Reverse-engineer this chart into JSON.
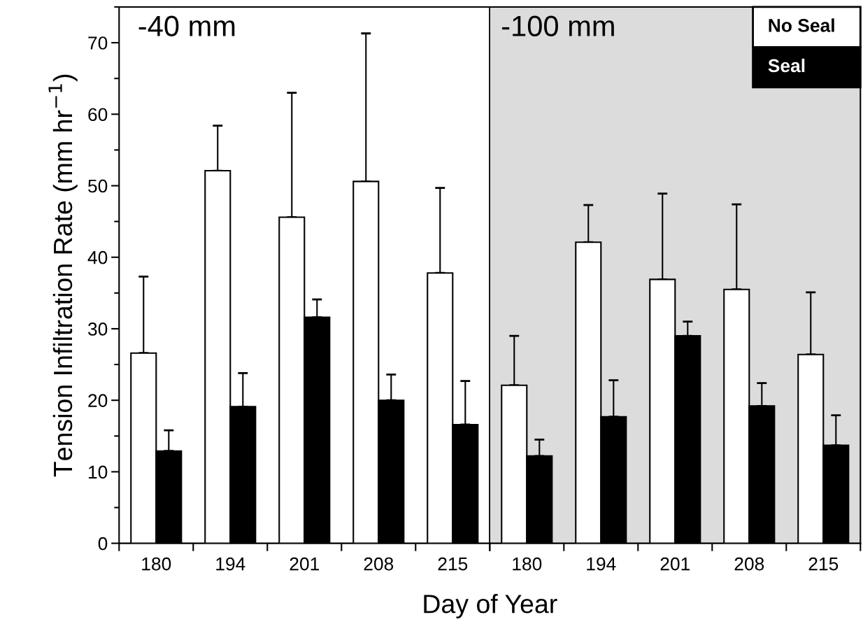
{
  "chart_data": [
    {
      "type": "bar",
      "title": "-40 mm",
      "xlabel": "Day of Year",
      "ylabel": "Tension Infiltration Rate (mm hr$^{−1}$)",
      "categories": [
        "180",
        "194",
        "201",
        "208",
        "215"
      ],
      "series": [
        {
          "color": "#ffffff",
          "values": [
            26.6,
            52.1,
            45.6,
            50.6,
            37.8
          ],
          "errors": [
            [
              26.6,
              37.3
            ],
            [
              52.1,
              58.4
            ],
            [
              45.6,
              63.0
            ],
            [
              50.6,
              71.3
            ],
            [
              37.8,
              49.7
            ]
          ]
        },
        {
          "color": "#000000",
          "values": [
            12.9,
            19.1,
            31.6,
            20.0,
            16.6
          ],
          "errors": [
            [
              12.9,
              15.8
            ],
            [
              19.1,
              23.8
            ],
            [
              31.6,
              34.1
            ],
            [
              20.0,
              23.6
            ],
            [
              16.6,
              22.7
            ]
          ]
        }
      ],
      "ylim": [
        0,
        75
      ],
      "yticks": [
        0,
        10,
        20,
        30,
        40,
        50,
        60,
        70
      ]
    },
    {
      "type": "bar",
      "title": "-100 mm",
      "categories": [
        "180",
        "194",
        "201",
        "208",
        "215"
      ],
      "series": [
        {
          "name": "No Seal",
          "color": "#ffffff",
          "values": [
            22.1,
            42.1,
            36.9,
            35.5,
            26.4
          ],
          "errors": [
            [
              22.1,
              29.0
            ],
            [
              42.1,
              47.3
            ],
            [
              36.9,
              48.9
            ],
            [
              35.5,
              47.4
            ],
            [
              26.4,
              35.1
            ]
          ]
        },
        {
          "name": "Seal",
          "color": "#000000",
          "values": [
            12.2,
            17.7,
            29.0,
            19.2,
            13.7
          ],
          "errors": [
            [
              12.2,
              14.5
            ],
            [
              17.7,
              22.8
            ],
            [
              29.0,
              31.0
            ],
            [
              19.2,
              22.4
            ],
            [
              13.7,
              17.9
            ]
          ]
        }
      ],
      "ylim": [
        0,
        75
      ],
      "yticks": [
        0,
        10,
        20,
        30,
        40,
        50,
        60,
        70
      ],
      "tick_labels": "x",
      "bands": [
        {
          "axis": "x",
          "from": "180",
          "to": "215",
          "color": "#dcdcdc"
        }
      ],
      "legend": "top right"
    }
  ]
}
